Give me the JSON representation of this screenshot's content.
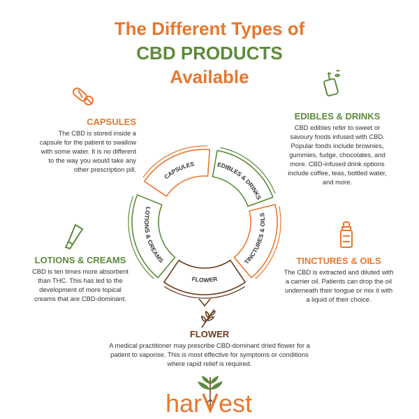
{
  "title": {
    "line1": "The Different Types of",
    "line2": "CBD PRODUCTS",
    "line3": "Available"
  },
  "sections": {
    "capsules": {
      "heading": "CAPSULES",
      "body": "The CBD is stored inside a capsule for the patient to swallow with some water. It is no different to the way you would take any other prescription pill."
    },
    "edibles": {
      "heading": "EDIBLES & DRINKS",
      "body": "CBD edibles refer to sweet or savoury foods infused with CBD. Popular foods include brownies, gummies, fudge, chocolates, and more. CBD-infused drink options include coffee, teas, bottled water, and more."
    },
    "lotions": {
      "heading": "LOTIONS & CREAMS",
      "body": "CBD is ten times more absorbent than THC. This has led to the development of more topical creams that are CBD-dominant."
    },
    "tinctures": {
      "heading": "TINCTURES & OILS",
      "body": "The CBD is extracted and diluted with a carrier oil. Patients can drop the oil underneath their tongue or mix it with a liquid of their choice."
    },
    "flower": {
      "heading": "FLOWER",
      "body": "A medical practitioner may prescribe CBD-dominant dried flower for a patient to vaporise. This is most effective for symptoms or conditions where rapid relief is required."
    }
  },
  "wheel": {
    "capsules": "CAPSULES",
    "edibles": "EDIBLES & DRINKS",
    "tinctures": "TINCTURES & OILS",
    "flower": "FLOWER",
    "lotions": "LOTIONS & CREAMS"
  },
  "colors": {
    "orange": "#e8772e",
    "green": "#5c8a3a",
    "brown": "#6b3a1f"
  },
  "logo": {
    "text_left": "har",
    "text_right": "est"
  },
  "icons": [
    "capsule-icon",
    "drink-can-icon",
    "cream-tube-icon",
    "dropper-bottle-icon",
    "flower-sprig-icon",
    "plant-logo-icon"
  ]
}
